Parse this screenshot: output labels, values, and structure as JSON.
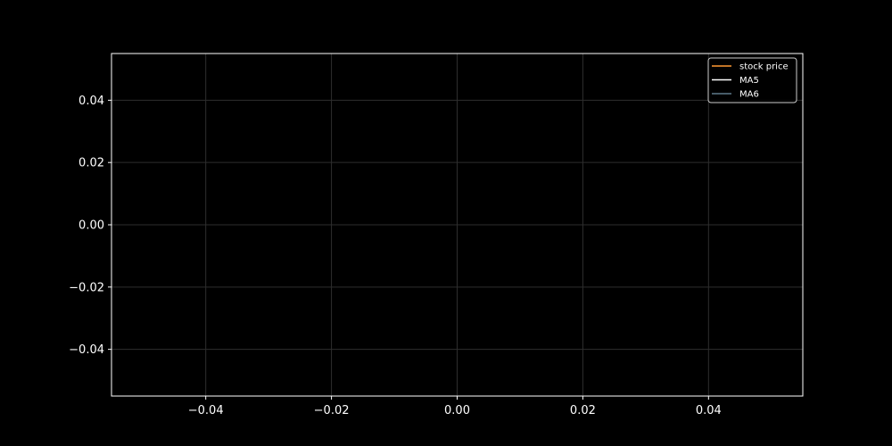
{
  "chart_data": {
    "type": "line",
    "title": "",
    "xlabel": "",
    "ylabel": "",
    "xlim": [
      -0.055,
      0.055
    ],
    "ylim": [
      -0.055,
      0.055
    ],
    "x_ticks": [
      -0.04,
      -0.02,
      0.0,
      0.02,
      0.04
    ],
    "x_tick_labels": [
      "−0.04",
      "−0.02",
      "0.00",
      "0.02",
      "0.04"
    ],
    "y_ticks": [
      0.04,
      0.02,
      0.0,
      -0.02,
      -0.04
    ],
    "y_tick_labels": [
      "0.04",
      "0.02",
      "0.00",
      "−0.02",
      "−0.04"
    ],
    "grid": true,
    "legend_position": "top-right",
    "series": [
      {
        "name": "stock price",
        "color": "#ff9933",
        "x": [],
        "y": []
      },
      {
        "name": "MA5",
        "color": "#ffffff",
        "x": [],
        "y": []
      },
      {
        "name": "MA6",
        "color": "#5f7a8c",
        "x": [],
        "y": []
      }
    ],
    "colors": {
      "background": "#000000",
      "axes_edge": "#ffffff",
      "grid": "#2e2e2e",
      "text": "#ffffff"
    }
  }
}
